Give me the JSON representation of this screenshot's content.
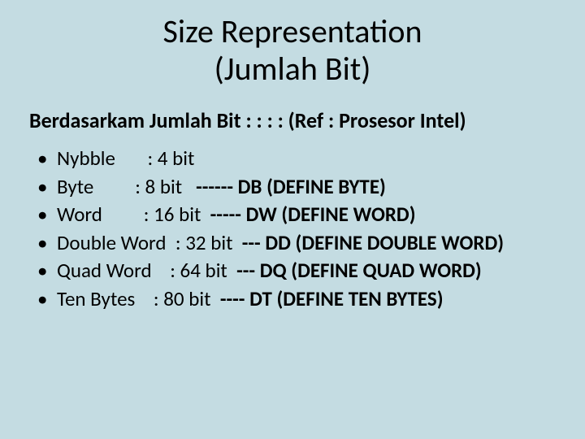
{
  "background_color": "#c4dce2",
  "text_color": "#000000",
  "title": {
    "line1": "Size Representation",
    "line2": "(Jumlah Bit)",
    "fontsize": 40,
    "weight": "normal"
  },
  "subtitle": {
    "text": "Berdasarkam Jumlah Bit : : : : (Ref : Prosesor Intel)",
    "fontsize": 26,
    "weight": "bold"
  },
  "items": [
    {
      "name": "Nybble",
      "size": ": 4 bit",
      "def": ""
    },
    {
      "name": "Byte",
      "size": ": 8 bit",
      "def": "------ DB (DEFINE BYTE)"
    },
    {
      "name": "Word",
      "size": ": 16 bit",
      "def": "----- DW (DEFINE WORD)"
    },
    {
      "name": "Double Word",
      "size": ": 32 bit",
      "def": "--- DD (DEFINE DOUBLE WORD)"
    },
    {
      "name": "Quad Word",
      "size": ": 64 bit",
      "def": "--- DQ (DEFINE QUAD WORD)"
    },
    {
      "name": "Ten Bytes",
      "size": ": 80 bit",
      "def": "---- DT (DEFINE TEN BYTES)"
    }
  ],
  "item_style": {
    "fontsize": 25,
    "name_col_width_ch": 13,
    "size_col_width_ch": 9
  }
}
